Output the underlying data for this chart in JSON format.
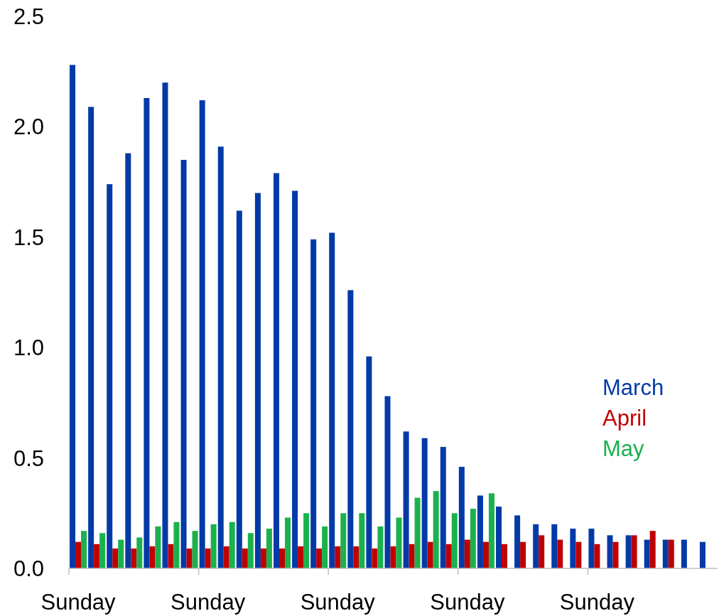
{
  "chart_data": {
    "type": "bar",
    "categories": [
      "Sunday",
      null,
      null,
      null,
      null,
      null,
      null,
      "Sunday",
      null,
      null,
      null,
      null,
      null,
      null,
      "Sunday",
      null,
      null,
      null,
      null,
      null,
      null,
      "Sunday",
      null,
      null,
      null,
      null,
      null,
      null,
      "Sunday",
      null,
      null,
      null,
      null,
      null,
      null
    ],
    "series": [
      {
        "name": "March",
        "color": "#033aa8",
        "values": [
          2.28,
          2.09,
          1.74,
          1.88,
          2.13,
          2.2,
          1.85,
          2.12,
          1.91,
          1.62,
          1.7,
          1.79,
          1.71,
          1.49,
          1.52,
          1.26,
          0.96,
          0.78,
          0.62,
          0.59,
          0.55,
          0.46,
          0.33,
          0.28,
          0.24,
          0.2,
          0.2,
          0.18,
          0.18,
          0.15,
          0.15,
          0.13,
          0.13,
          0.13,
          0.12
        ]
      },
      {
        "name": "April",
        "color": "#c00000",
        "values": [
          0.12,
          0.11,
          0.09,
          0.09,
          0.1,
          0.11,
          0.09,
          0.09,
          0.1,
          0.09,
          0.09,
          0.09,
          0.1,
          0.09,
          0.1,
          0.1,
          0.09,
          0.1,
          0.11,
          0.12,
          0.11,
          0.13,
          0.12,
          0.11,
          0.12,
          0.15,
          0.13,
          0.12,
          0.11,
          0.12,
          0.15,
          0.17,
          0.13,
          null,
          null
        ]
      },
      {
        "name": "May",
        "color": "#1bb14c",
        "values": [
          0.17,
          0.16,
          0.13,
          0.14,
          0.19,
          0.21,
          0.17,
          0.2,
          0.21,
          0.16,
          0.18,
          0.23,
          0.25,
          0.19,
          0.25,
          0.25,
          0.19,
          0.23,
          0.32,
          0.35,
          0.25,
          0.27,
          0.34,
          null,
          null,
          null,
          null,
          null,
          null,
          null,
          null,
          null,
          null,
          null,
          null
        ]
      }
    ],
    "ylim": [
      0,
      2.5
    ],
    "yticks": [
      {
        "value": 0,
        "label": "0.0"
      },
      {
        "value": 0.5,
        "label": "0.5"
      },
      {
        "value": 1,
        "label": "1.0"
      },
      {
        "value": 1.5,
        "label": "1.5"
      },
      {
        "value": 2,
        "label": "2.0"
      },
      {
        "value": 2.5,
        "label": "2.5"
      }
    ],
    "legend": "right"
  }
}
